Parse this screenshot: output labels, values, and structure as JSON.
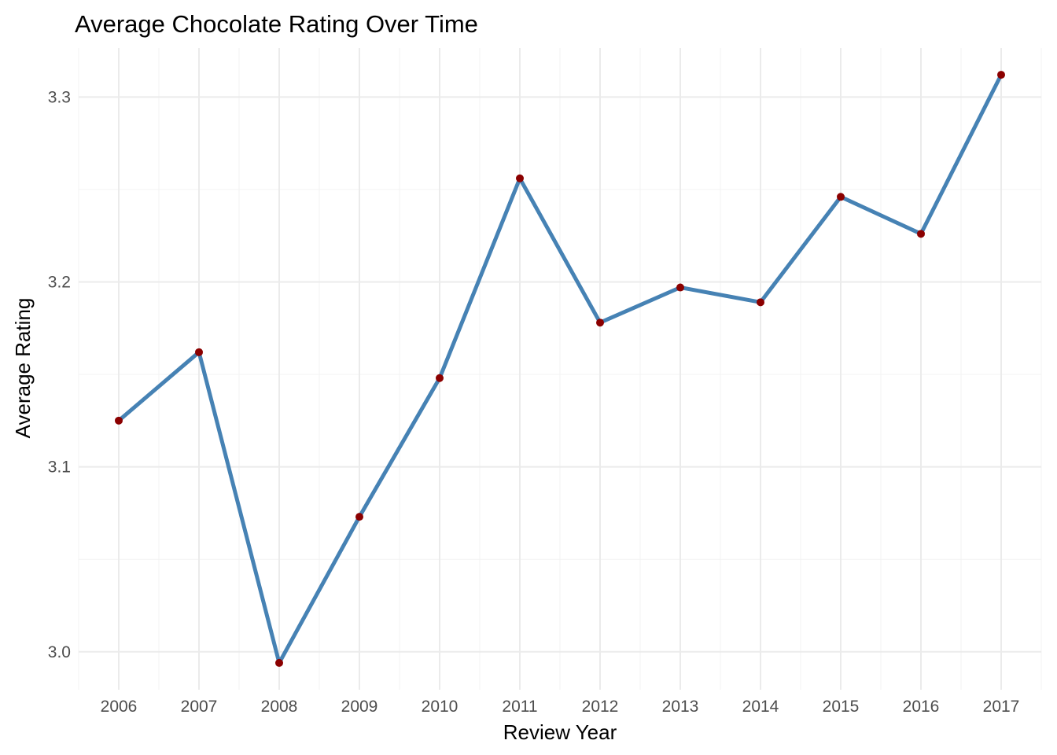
{
  "chart_data": {
    "type": "line",
    "title": "Average Chocolate Rating Over Time",
    "xlabel": "Review Year",
    "ylabel": "Average Rating",
    "x": [
      "2006",
      "2007",
      "2008",
      "2009",
      "2010",
      "2011",
      "2012",
      "2013",
      "2014",
      "2015",
      "2016",
      "2017"
    ],
    "series": [
      {
        "values": [
          3.125,
          3.162,
          2.994,
          3.073,
          3.148,
          3.256,
          3.178,
          3.197,
          3.189,
          3.246,
          3.226,
          3.312
        ],
        "line_color": "#4682b4",
        "point_color": "#8b0000"
      }
    ],
    "ylim": [
      2.9795,
      3.3265
    ],
    "yticks": [
      3.0,
      3.1,
      3.2,
      3.3
    ],
    "ytick_labels": [
      "3.0",
      "3.1",
      "3.2",
      "3.3"
    ],
    "grid": true,
    "legend": "none"
  }
}
